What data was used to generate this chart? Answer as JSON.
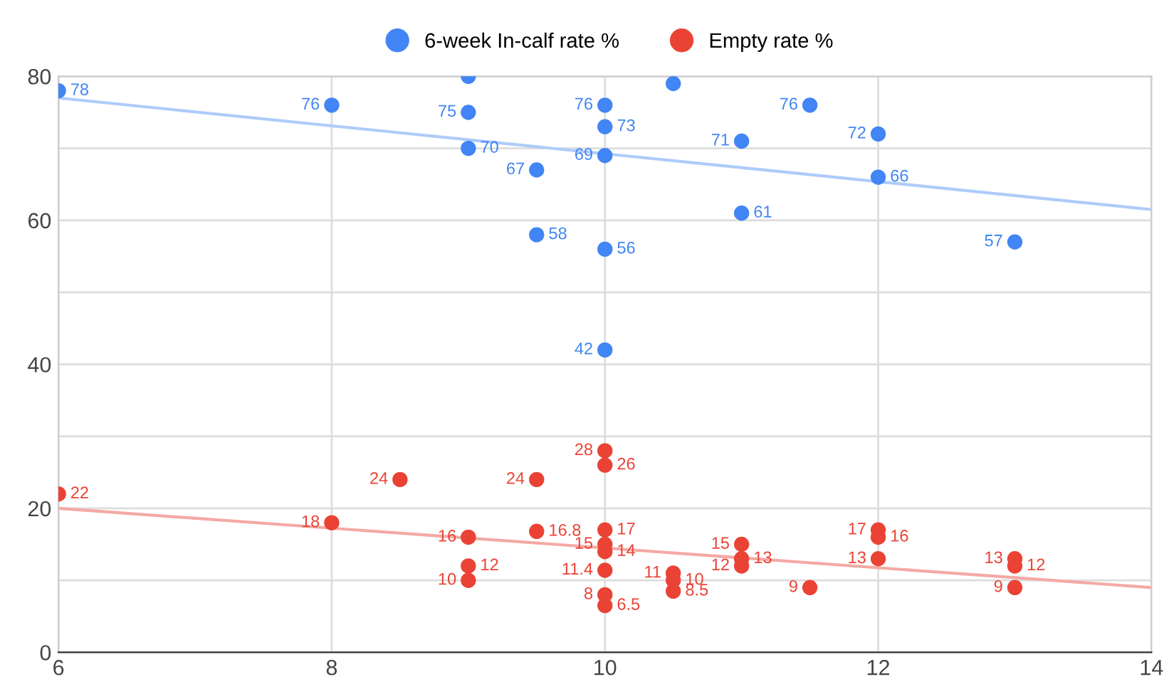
{
  "chart_data": {
    "type": "scatter",
    "xlim": [
      6,
      14
    ],
    "ylim": [
      0,
      80
    ],
    "xticks": [
      6,
      8,
      10,
      12,
      14
    ],
    "yticks": [
      0,
      {
        "value": 10,
        "label": null
      },
      20,
      {
        "value": 30,
        "label": null
      },
      40,
      {
        "value": 50,
        "label": null
      },
      60,
      {
        "value": 70,
        "label": null
      },
      80
    ],
    "grid": true,
    "legend": "top",
    "marker": "circle",
    "series": [
      {
        "name": "6-week In-calf rate %",
        "color": "#4285f4",
        "x": [
          6,
          8,
          9,
          9,
          9,
          9.5,
          9.5,
          10,
          10,
          10,
          10,
          10,
          10.5,
          11,
          11,
          11.5,
          12,
          12,
          13
        ],
        "values": [
          78,
          76,
          80,
          75,
          70,
          67,
          58,
          76,
          73,
          69,
          56,
          42,
          79,
          71,
          61,
          76,
          72,
          66,
          57
        ],
        "value_labels": [
          "78",
          "76",
          null,
          "75",
          "70",
          "67",
          "58",
          "76",
          "73",
          "69",
          "56",
          "42",
          null,
          "71",
          "61",
          "76",
          "72",
          "66",
          "57"
        ]
      },
      {
        "name": "Empty rate %",
        "color": "#ea4335",
        "x": [
          6,
          8,
          8.5,
          9,
          9,
          9,
          9.5,
          9.5,
          10,
          10,
          10,
          10,
          10,
          10,
          10,
          10,
          10.5,
          10.5,
          10.5,
          11,
          11,
          11,
          11.5,
          12,
          12,
          12,
          13,
          13,
          13
        ],
        "values": [
          22,
          18,
          24,
          16,
          12,
          10,
          24,
          16.8,
          28,
          26,
          17,
          15,
          14,
          11.4,
          8,
          6.5,
          11,
          10,
          8.5,
          15,
          13,
          12,
          9,
          17,
          16,
          13,
          13,
          12,
          9
        ],
        "value_labels": [
          "22",
          "18",
          "24",
          "16",
          "12",
          "10",
          "24",
          "16.8",
          "28",
          "26",
          "17",
          "15",
          "14",
          "11.4",
          "8",
          "6.5",
          "11",
          "10",
          "8.5",
          "15",
          "13",
          "12",
          "9",
          "17",
          "16",
          "13",
          "13",
          "12",
          "9"
        ]
      },
      {
        "type": "line",
        "color": "#aecbfa",
        "marker": "none",
        "x": [
          6,
          14
        ],
        "values": [
          77,
          61.5
        ]
      },
      {
        "type": "line",
        "color": "#f5a9a3",
        "marker": "none",
        "x": [
          6,
          14
        ],
        "values": [
          20,
          9
        ]
      }
    ]
  }
}
